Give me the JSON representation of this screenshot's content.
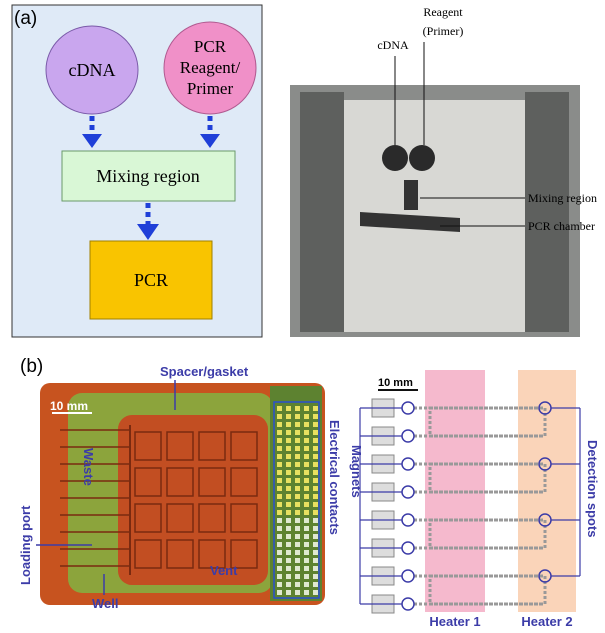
{
  "panel_a": {
    "label": "(a)",
    "flow": {
      "cdna": "cDNA",
      "reagent": [
        "PCR",
        "Reagent/",
        "Primer"
      ],
      "mixing": "Mixing region",
      "pcr": "PCR"
    },
    "photo": {
      "reagent": [
        "Reagent",
        "(Primer)"
      ],
      "cdna": "cDNA",
      "mixing": "Mixing region",
      "chamber": "PCR chamber"
    }
  },
  "panel_b": {
    "label": "(b)",
    "device": {
      "spacer": "Spacer/gasket",
      "scale": "10 mm",
      "waste": "Waste",
      "loading": "Loading port",
      "well": "Well",
      "vent": "Vent",
      "contacts": "Electrical contacts"
    },
    "schematic": {
      "scale": "10 mm",
      "magnets": "Magnets",
      "detection": "Detection spots",
      "heater1": "Heater 1",
      "heater2": "Heater 2"
    }
  }
}
